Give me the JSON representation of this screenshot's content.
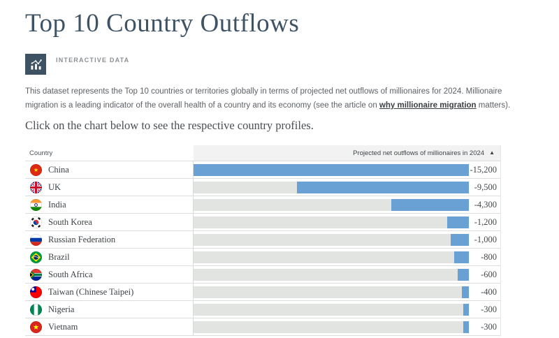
{
  "page": {
    "title": "Top 10 Country Outflows",
    "badge": {
      "label": "INTERACTIVE DATA",
      "icon": "bar-chart-icon",
      "background_color": "#3d5263"
    },
    "description": {
      "text_before_link": "This dataset represents the Top 10 countries or territories globally in terms of projected net outflows of millionaires for 2024. Millionaire migration is a leading indicator of the overall health of a country and its economy (see the article on ",
      "link_text": "why millionaire migration",
      "text_after_link": " matters)."
    },
    "subheading": "Click on the chart below to see the respective country profiles."
  },
  "table": {
    "header": {
      "country": "Country",
      "value": "Projected net outflows of millionaires in 2024",
      "sort_indicator": "▲"
    },
    "rows": [
      {
        "country": "China",
        "flag": "china",
        "value": -15200,
        "label": "-15,200"
      },
      {
        "country": "UK",
        "flag": "uk",
        "value": -9500,
        "label": "-9,500"
      },
      {
        "country": "India",
        "flag": "india",
        "value": -4300,
        "label": "-4,300"
      },
      {
        "country": "South Korea",
        "flag": "south-korea",
        "value": -1200,
        "label": "-1,200"
      },
      {
        "country": "Russian Federation",
        "flag": "russia",
        "value": -1000,
        "label": "-1,000"
      },
      {
        "country": "Brazil",
        "flag": "brazil",
        "value": -800,
        "label": "-800"
      },
      {
        "country": "South Africa",
        "flag": "south-africa",
        "value": -600,
        "label": "-600"
      },
      {
        "country": "Taiwan (Chinese Taipei)",
        "flag": "taiwan",
        "value": -400,
        "label": "-400"
      },
      {
        "country": "Nigeria",
        "flag": "nigeria",
        "value": -300,
        "label": "-300"
      },
      {
        "country": "Vietnam",
        "flag": "vietnam",
        "value": -300,
        "label": "-300"
      }
    ]
  },
  "colors": {
    "bar": "#6aa1d5",
    "bar_track": "#e2e4e2",
    "header_background": "#f1f2f1",
    "accent_dark": "#3d5263",
    "title_text": "#3e5365"
  },
  "chart_data": {
    "type": "bar",
    "orientation": "horizontal",
    "title": "Top 10 Country Outflows",
    "categories": [
      "China",
      "UK",
      "India",
      "South Korea",
      "Russian Federation",
      "Brazil",
      "South Africa",
      "Taiwan (Chinese Taipei)",
      "Nigeria",
      "Vietnam"
    ],
    "values": [
      -15200,
      -9500,
      -4300,
      -1200,
      -1000,
      -800,
      -600,
      -400,
      -300,
      -300
    ],
    "value_labels": [
      "-15,200",
      "-9,500",
      "-4,300",
      "-1,200",
      "-1,000",
      "-800",
      "-600",
      "-400",
      "-300",
      "-300"
    ],
    "xlabel": "Projected net outflows of millionaires in 2024",
    "ylabel": "Country",
    "xlim": [
      -15200,
      0
    ],
    "sort": "ascending",
    "legend": false,
    "grid": false
  }
}
